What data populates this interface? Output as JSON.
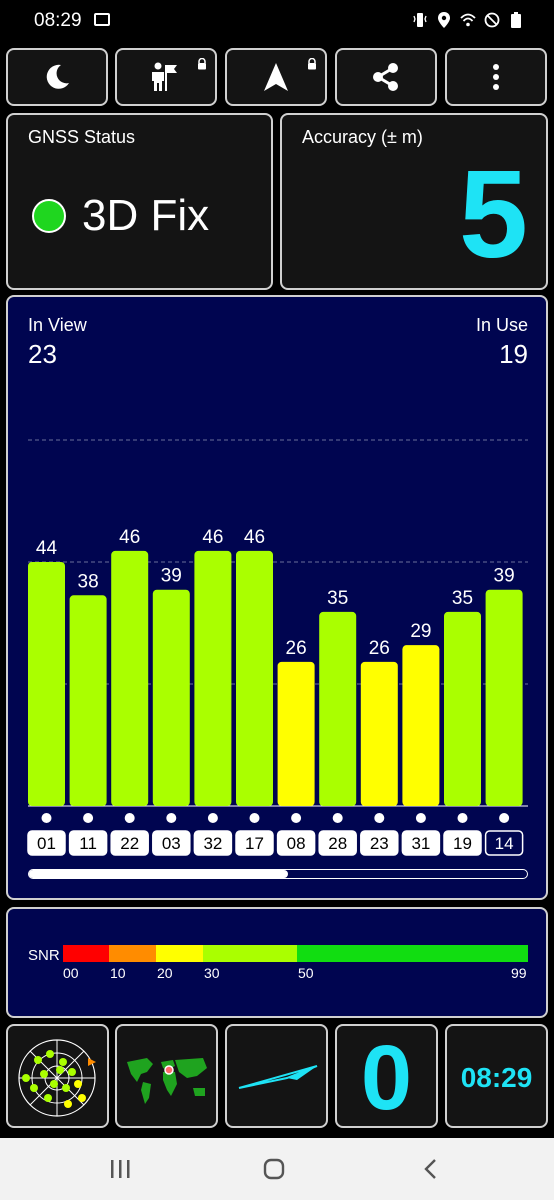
{
  "status_bar": {
    "time": "08:29"
  },
  "toolbar": {
    "buttons": [
      {
        "name": "night-mode-button",
        "icon": "moon-icon",
        "locked": false
      },
      {
        "name": "waypoint-button",
        "icon": "person-flag-icon",
        "locked": true
      },
      {
        "name": "navigation-button",
        "icon": "navigation-arrow-icon",
        "locked": true
      },
      {
        "name": "share-button",
        "icon": "share-icon",
        "locked": false
      },
      {
        "name": "more-options-button",
        "icon": "more-vertical-icon",
        "locked": false
      }
    ]
  },
  "gnss_status": {
    "title": "GNSS Status",
    "value": "3D Fix",
    "indicator_color": "#1fd61f"
  },
  "accuracy": {
    "title": "Accuracy (± m)",
    "value": "5",
    "value_color": "#1ee3f5"
  },
  "satellites": {
    "in_view_label": "In View",
    "in_view": "23",
    "in_use_label": "In Use",
    "in_use": "19",
    "scroll_position": 0.52
  },
  "chart_data": {
    "type": "bar",
    "categories": [
      "01",
      "11",
      "22",
      "03",
      "32",
      "17",
      "08",
      "28",
      "23",
      "31",
      "19",
      "14"
    ],
    "values": [
      44,
      38,
      46,
      39,
      46,
      46,
      26,
      35,
      26,
      29,
      35,
      39
    ],
    "ylim": [
      0,
      66
    ],
    "gridlines": [
      22,
      44,
      66
    ],
    "highlighted_category": "14",
    "color_rule": [
      {
        "min": 0,
        "max": 10,
        "color": "#ff0000"
      },
      {
        "min": 10,
        "max": 20,
        "color": "#ff8c00"
      },
      {
        "min": 20,
        "max": 30,
        "color": "#ffff00"
      },
      {
        "min": 30,
        "max": 50,
        "color": "#aaff00"
      },
      {
        "min": 50,
        "max": 99,
        "color": "#11dd11"
      }
    ]
  },
  "snr_legend": {
    "label": "SNR",
    "ticks": [
      "00",
      "10",
      "20",
      "30",
      "50",
      "99"
    ]
  },
  "bottom_bar": {
    "zero_value": "0",
    "clock": "08:29",
    "items": [
      "sky-view-button",
      "world-map-button",
      "compass-button",
      "speed-button",
      "time-button"
    ]
  }
}
